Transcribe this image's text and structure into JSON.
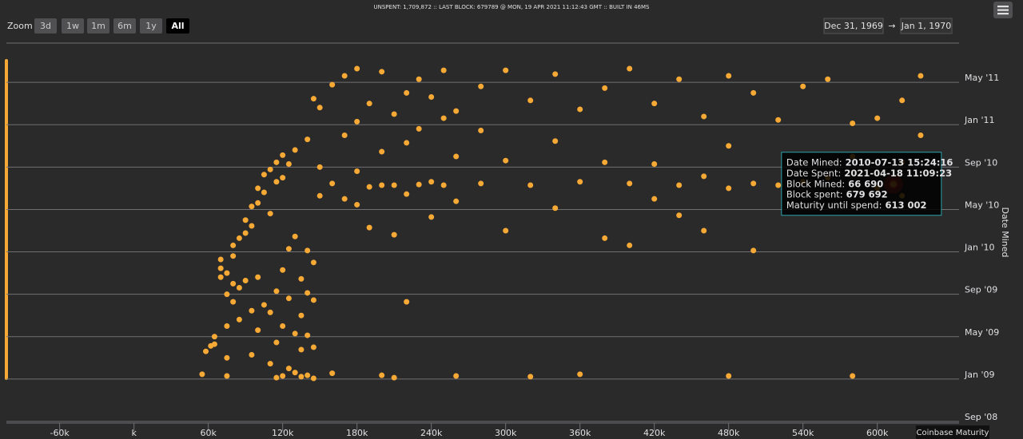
{
  "header": "UNSPENT: 1,709,872 :: LAST BLOCK: 679789 @ MON, 19 APR 2021 11:12:43 GMT :: BUILT IN 46MS",
  "zoom": {
    "label": "Zoom",
    "buttons": [
      "3d",
      "1w",
      "1m",
      "6m",
      "1y",
      "All"
    ],
    "selected": 5
  },
  "range": {
    "from": "Dec 31, 1969",
    "arrow": "→",
    "to": "Jan 1, 1970"
  },
  "tooltip": [
    {
      "label": "Date Mined:",
      "value": "2010-07-13 15:24:16"
    },
    {
      "label": "Date Spent:",
      "value": "2021-04-18 11:09:23"
    },
    {
      "label": "Block Mined:",
      "value": "66 690"
    },
    {
      "label": "Block spent:",
      "value": "679 692"
    },
    {
      "label": "Maturity until spend:",
      "value": "613 002"
    }
  ],
  "chart_data": {
    "type": "scatter",
    "y_axis_label": "Date Mined",
    "annotation": "Coinbase Maturity",
    "color": "#f7a935",
    "grid": true,
    "highlight_last": true,
    "xlim": [
      -103000,
      666000
    ],
    "xticks": [
      {
        "value": -60000,
        "label": "-60k"
      },
      {
        "value": 0,
        "label": "k"
      },
      {
        "value": 60000,
        "label": "60k"
      },
      {
        "value": 120000,
        "label": "120k"
      },
      {
        "value": 180000,
        "label": "180k"
      },
      {
        "value": 240000,
        "label": "240k"
      },
      {
        "value": 300000,
        "label": "300k"
      },
      {
        "value": 360000,
        "label": "360k"
      },
      {
        "value": 420000,
        "label": "420k"
      },
      {
        "value": 480000,
        "label": "480k"
      },
      {
        "value": 540000,
        "label": "540k"
      },
      {
        "value": 600000,
        "label": "600k"
      }
    ],
    "ylim": [
      "2008-09-01",
      "2011-09-01"
    ],
    "yticks": [
      {
        "value": "2008-09-01",
        "label": "Sep '08"
      },
      {
        "value": "2009-01-01",
        "label": "Jan '09"
      },
      {
        "value": "2009-05-01",
        "label": "May '09"
      },
      {
        "value": "2009-09-01",
        "label": "Sep '09"
      },
      {
        "value": "2010-01-01",
        "label": "Jan '10"
      },
      {
        "value": "2010-05-01",
        "label": "May '10"
      },
      {
        "value": "2010-09-01",
        "label": "Sep '10"
      },
      {
        "value": "2011-01-01",
        "label": "Jan '11"
      },
      {
        "value": "2011-05-01",
        "label": "May '11"
      }
    ],
    "x": [
      55000,
      58000,
      62000,
      65000,
      65000,
      70000,
      70000,
      70000,
      75000,
      75000,
      75000,
      75000,
      75000,
      80000,
      80000,
      80000,
      80000,
      85000,
      85000,
      85000,
      90000,
      90000,
      90000,
      95000,
      95000,
      95000,
      95000,
      100000,
      100000,
      100000,
      100000,
      105000,
      105000,
      105000,
      110000,
      110000,
      110000,
      110000,
      115000,
      115000,
      115000,
      115000,
      115000,
      120000,
      120000,
      120000,
      120000,
      120000,
      125000,
      125000,
      125000,
      125000,
      130000,
      130000,
      130000,
      130000,
      135000,
      135000,
      135000,
      135000,
      140000,
      140000,
      140000,
      140000,
      140000,
      145000,
      145000,
      145000,
      145000,
      145000,
      150000,
      150000,
      150000,
      160000,
      160000,
      160000,
      170000,
      170000,
      170000,
      180000,
      180000,
      180000,
      180000,
      190000,
      190000,
      190000,
      200000,
      200000,
      200000,
      200000,
      210000,
      210000,
      210000,
      210000,
      220000,
      220000,
      220000,
      220000,
      230000,
      230000,
      230000,
      240000,
      240000,
      240000,
      250000,
      250000,
      250000,
      260000,
      260000,
      260000,
      260000,
      280000,
      280000,
      280000,
      300000,
      300000,
      300000,
      320000,
      320000,
      320000,
      340000,
      340000,
      340000,
      360000,
      360000,
      360000,
      380000,
      380000,
      380000,
      400000,
      400000,
      400000,
      420000,
      420000,
      420000,
      440000,
      440000,
      440000,
      460000,
      460000,
      460000,
      480000,
      480000,
      480000,
      480000,
      500000,
      500000,
      500000,
      520000,
      520000,
      540000,
      540000,
      560000,
      560000,
      580000,
      580000,
      580000,
      600000,
      600000,
      620000,
      620000,
      620000,
      635000,
      635000,
      613002
    ],
    "values": [
      "2009-01-15",
      "2009-03-20",
      "2009-04-05",
      "2009-04-10",
      "2009-05-01",
      "2009-10-20",
      "2009-11-15",
      "2009-12-10",
      "2009-01-10",
      "2009-03-01",
      "2009-06-01",
      "2009-09-01",
      "2009-11-01",
      "2009-08-10",
      "2009-10-01",
      "2009-12-20",
      "2010-01-20",
      "2009-06-20",
      "2009-09-20",
      "2010-02-10",
      "2009-10-10",
      "2010-02-25",
      "2010-04-01",
      "2009-03-10",
      "2009-07-15",
      "2010-03-15",
      "2010-05-10",
      "2009-05-20",
      "2009-10-20",
      "2010-05-20",
      "2010-07-01",
      "2009-08-01",
      "2010-06-20",
      "2010-08-10",
      "2009-02-15",
      "2009-07-10",
      "2010-04-20",
      "2010-08-25",
      "2009-01-05",
      "2009-04-15",
      "2009-09-10",
      "2010-07-20",
      "2010-09-15",
      "2009-01-10",
      "2009-06-01",
      "2009-11-10",
      "2010-08-01",
      "2010-10-05",
      "2009-02-01",
      "2009-08-20",
      "2010-01-10",
      "2010-09-10",
      "2009-01-20",
      "2009-05-10",
      "2010-02-15",
      "2010-10-20",
      "2009-01-08",
      "2009-03-25",
      "2009-07-01",
      "2009-10-15",
      "2009-01-12",
      "2009-05-05",
      "2009-09-05",
      "2010-01-05",
      "2010-11-20",
      "2009-01-03",
      "2009-04-01",
      "2009-08-15",
      "2009-12-01",
      "2011-03-15",
      "2010-06-10",
      "2010-09-01",
      "2011-02-20",
      "2010-07-15",
      "2011-04-25",
      "2009-01-18",
      "2010-06-01",
      "2010-12-01",
      "2011-05-20",
      "2010-05-15",
      "2010-08-20",
      "2011-01-10",
      "2011-06-10",
      "2010-03-10",
      "2010-07-05",
      "2011-03-01",
      "2010-07-10",
      "2010-10-15",
      "2011-06-01",
      "2009-01-12",
      "2010-02-20",
      "2010-07-10",
      "2011-02-01",
      "2009-01-05",
      "2010-06-15",
      "2010-11-10",
      "2011-04-01",
      "2009-08-10",
      "2010-07-12",
      "2010-12-20",
      "2011-05-10",
      "2010-04-10",
      "2010-07-20",
      "2011-03-20",
      "2010-07-10",
      "2011-01-20",
      "2011-06-05",
      "2010-05-25",
      "2010-10-01",
      "2011-02-10",
      "2009-01-10",
      "2010-07-15",
      "2010-12-15",
      "2011-04-20",
      "2010-03-01",
      "2011-06-05",
      "2010-09-20",
      "2010-07-10",
      "2011-03-10",
      "2009-01-08",
      "2010-05-05",
      "2010-11-15",
      "2011-05-25",
      "2010-07-20",
      "2011-02-15",
      "2009-01-15",
      "2010-02-10",
      "2010-09-15",
      "2011-04-15",
      "2010-07-15",
      "2011-06-10",
      "2010-01-20",
      "2010-06-01",
      "2010-09-10",
      "2011-03-01",
      "2010-07-10",
      "2010-04-15",
      "2011-05-10",
      "2010-08-05",
      "2011-01-25",
      "2010-03-01",
      "2010-07-01",
      "2010-11-01",
      "2011-05-20",
      "2009-01-10",
      "2010-01-05",
      "2010-07-15",
      "2011-04-01",
      "2010-07-10",
      "2011-01-15",
      "2010-07-20",
      "2011-04-20",
      "2010-08-01",
      "2011-05-10",
      "2010-10-01",
      "2011-01-05",
      "2009-01-10",
      "2010-07-01",
      "2011-01-20",
      "2010-09-15",
      "2011-03-10",
      "2010-06-10",
      "2011-05-20",
      "2010-12-01",
      "2010-07-13"
    ]
  }
}
